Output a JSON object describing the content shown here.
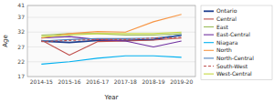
{
  "chart_data": {
    "type": "line",
    "xlabel": "Year",
    "ylabel": "Age",
    "categories": [
      "2014-15",
      "2015-16",
      "2016-17",
      "2017-18",
      "2018-19",
      "2019-20"
    ],
    "series": [
      {
        "name": "Ontario",
        "color": "#1f3f8f",
        "line_style": "solid",
        "values": [
          29.0,
          28.5,
          29.2,
          29.2,
          29.5,
          31.0
        ]
      },
      {
        "name": "Central",
        "color": "#c0504d",
        "line_style": "solid",
        "values": [
          29.3,
          24.2,
          28.8,
          29.0,
          29.3,
          30.0
        ]
      },
      {
        "name": "East",
        "color": "#9bbb59",
        "line_style": "solid",
        "values": [
          31.0,
          31.5,
          31.5,
          31.0,
          31.0,
          31.5
        ]
      },
      {
        "name": "East-Central",
        "color": "#7030a0",
        "line_style": "solid",
        "values": [
          30.0,
          30.5,
          29.5,
          29.0,
          27.0,
          29.0
        ]
      },
      {
        "name": "Niagara",
        "color": "#00b0f0",
        "line_style": "solid",
        "values": [
          21.2,
          22.0,
          23.2,
          24.0,
          24.0,
          23.5
        ]
      },
      {
        "name": "North",
        "color": "#f79646",
        "line_style": "solid",
        "values": [
          30.0,
          31.5,
          32.2,
          32.0,
          35.5,
          38.0
        ]
      },
      {
        "name": "North-Central",
        "color": "#4f81bd",
        "line_style": "solid",
        "values": [
          29.0,
          29.5,
          29.8,
          29.8,
          30.0,
          31.0
        ]
      },
      {
        "name": "South-West",
        "color": "#c0504d",
        "line_style": "dashed",
        "values": [
          28.8,
          29.2,
          29.5,
          29.5,
          30.0,
          30.2
        ]
      },
      {
        "name": "West-Central",
        "color": "#c6d940",
        "line_style": "solid",
        "values": [
          30.5,
          31.0,
          31.5,
          31.5,
          31.5,
          32.0
        ]
      }
    ],
    "ylim": [
      17,
      41
    ],
    "yticks": [
      17,
      22,
      27,
      32,
      37,
      41
    ],
    "grid": true,
    "legend": "right"
  }
}
